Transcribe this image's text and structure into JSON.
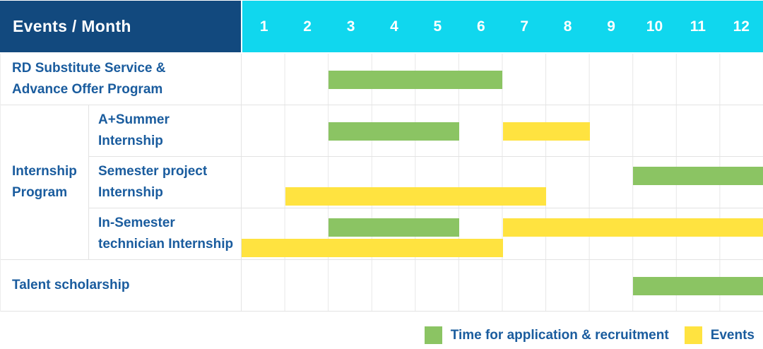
{
  "header": {
    "title": "Events / Month",
    "months": [
      "1",
      "2",
      "3",
      "4",
      "5",
      "6",
      "7",
      "8",
      "9",
      "10",
      "11",
      "12"
    ]
  },
  "colors": {
    "recruitment": "#8BC463",
    "event": "#FFE340",
    "header_bg": "#12497E",
    "months_header_bg": "#10D7EE",
    "label_text": "#1A5C9E",
    "header_text": "#FFFFFF",
    "grid_line": "#E3E3E3"
  },
  "chart_data": {
    "type": "gantt",
    "x_unit": "month",
    "x_range": [
      1,
      12
    ],
    "group": {
      "label": "Internship Program",
      "lines": [
        "Internship",
        "Program"
      ],
      "member_rows": [
        1,
        2,
        3
      ]
    },
    "rows": [
      {
        "label": "RD Substitute Service & Advance Offer Program",
        "label_lines": [
          "RD Substitute Service &",
          "Advance Offer Program"
        ],
        "bars": [
          {
            "type": "recruitment",
            "start_month": 3,
            "end_month": 6,
            "line": "single"
          }
        ]
      },
      {
        "label": "A+Summer Internship",
        "label_lines": [
          "A+Summer",
          "Internship"
        ],
        "bars": [
          {
            "type": "recruitment",
            "start_month": 3,
            "end_month": 5,
            "line": "single"
          },
          {
            "type": "event",
            "start_month": 7,
            "end_month": 8,
            "line": "single"
          }
        ]
      },
      {
        "label": "Semester project Internship",
        "label_lines": [
          "Semester project",
          "Internship"
        ],
        "bars": [
          {
            "type": "recruitment",
            "start_month": 10,
            "end_month": 12,
            "line": "top"
          },
          {
            "type": "event",
            "start_month": 2,
            "end_month": 7,
            "line": "bottom"
          }
        ]
      },
      {
        "label": "In-Semester technician Internship",
        "label_lines": [
          "In-Semester",
          "technician Internship"
        ],
        "bars": [
          {
            "type": "recruitment",
            "start_month": 3,
            "end_month": 5,
            "line": "top"
          },
          {
            "type": "event",
            "start_month": 7,
            "end_month": 12,
            "line": "top"
          },
          {
            "type": "event",
            "start_month": 1,
            "end_month": 6,
            "line": "bottom"
          }
        ]
      },
      {
        "label": "Talent scholarship",
        "label_lines": [
          "Talent scholarship"
        ],
        "bars": [
          {
            "type": "recruitment",
            "start_month": 10,
            "end_month": 12,
            "line": "single"
          }
        ]
      }
    ],
    "legend": [
      {
        "type": "recruitment",
        "label": "Time for application & recruitment"
      },
      {
        "type": "event",
        "label": "Events"
      }
    ],
    "legend_position": "bottom-right"
  }
}
